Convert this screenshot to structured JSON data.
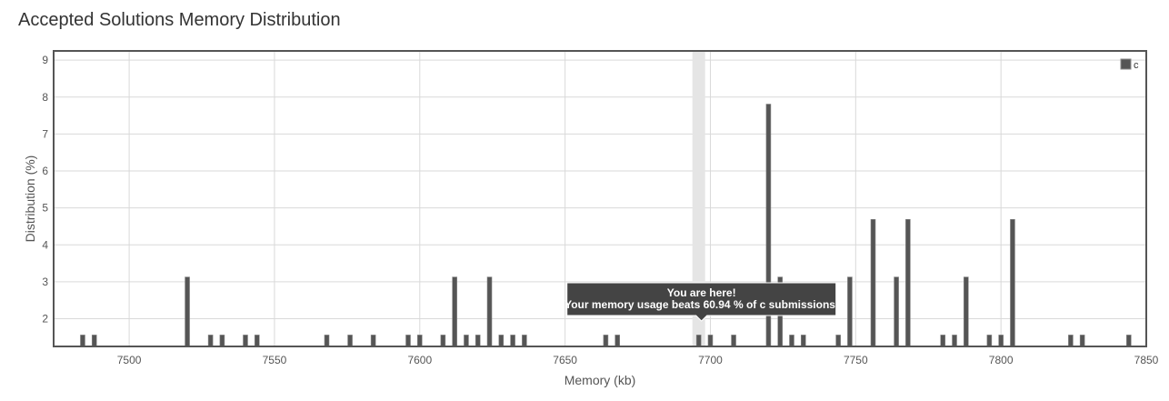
{
  "page": {
    "title": "Accepted Solutions Memory Distribution"
  },
  "tooltip": {
    "line1": "You are here!",
    "line2": "Your memory usage beats 60.94 % of c submissions."
  },
  "colors": {
    "bar": "#555555",
    "grid": "#d9d9d9",
    "frame": "#555555",
    "highlight": "#e5e5e5",
    "tooltip_bg": "#444444"
  },
  "chart_data": {
    "type": "bar",
    "title": "",
    "xlabel": "Memory (kb)",
    "ylabel": "Distribution (%)",
    "xlim": [
      7474,
      7850
    ],
    "ylim": [
      1.25,
      9.25
    ],
    "x_ticks": [
      7500,
      7550,
      7600,
      7650,
      7700,
      7750,
      7800,
      7850
    ],
    "y_ticks": [
      2,
      3,
      4,
      5,
      6,
      7,
      8,
      9
    ],
    "grid": true,
    "legend_position": "top-right",
    "highlight_x": 7696,
    "series": [
      {
        "name": "c",
        "points": [
          {
            "x": 7484,
            "y": 1.56
          },
          {
            "x": 7488,
            "y": 1.56
          },
          {
            "x": 7520,
            "y": 3.13
          },
          {
            "x": 7528,
            "y": 1.56
          },
          {
            "x": 7532,
            "y": 1.56
          },
          {
            "x": 7540,
            "y": 1.56
          },
          {
            "x": 7544,
            "y": 1.56
          },
          {
            "x": 7568,
            "y": 1.56
          },
          {
            "x": 7576,
            "y": 1.56
          },
          {
            "x": 7584,
            "y": 1.56
          },
          {
            "x": 7596,
            "y": 1.56
          },
          {
            "x": 7600,
            "y": 1.56
          },
          {
            "x": 7608,
            "y": 1.56
          },
          {
            "x": 7612,
            "y": 3.13
          },
          {
            "x": 7616,
            "y": 1.56
          },
          {
            "x": 7620,
            "y": 1.56
          },
          {
            "x": 7624,
            "y": 3.13
          },
          {
            "x": 7628,
            "y": 1.56
          },
          {
            "x": 7632,
            "y": 1.56
          },
          {
            "x": 7636,
            "y": 1.56
          },
          {
            "x": 7664,
            "y": 1.56
          },
          {
            "x": 7668,
            "y": 1.56
          },
          {
            "x": 7696,
            "y": 1.56
          },
          {
            "x": 7700,
            "y": 1.56
          },
          {
            "x": 7708,
            "y": 1.56
          },
          {
            "x": 7720,
            "y": 7.81
          },
          {
            "x": 7724,
            "y": 3.13
          },
          {
            "x": 7728,
            "y": 1.56
          },
          {
            "x": 7732,
            "y": 1.56
          },
          {
            "x": 7744,
            "y": 1.56
          },
          {
            "x": 7748,
            "y": 3.13
          },
          {
            "x": 7756,
            "y": 4.69
          },
          {
            "x": 7764,
            "y": 3.13
          },
          {
            "x": 7768,
            "y": 4.69
          },
          {
            "x": 7780,
            "y": 1.56
          },
          {
            "x": 7784,
            "y": 1.56
          },
          {
            "x": 7788,
            "y": 3.13
          },
          {
            "x": 7796,
            "y": 1.56
          },
          {
            "x": 7800,
            "y": 1.56
          },
          {
            "x": 7804,
            "y": 4.69
          },
          {
            "x": 7824,
            "y": 1.56
          },
          {
            "x": 7828,
            "y": 1.56
          },
          {
            "x": 7844,
            "y": 1.56
          }
        ]
      }
    ]
  }
}
